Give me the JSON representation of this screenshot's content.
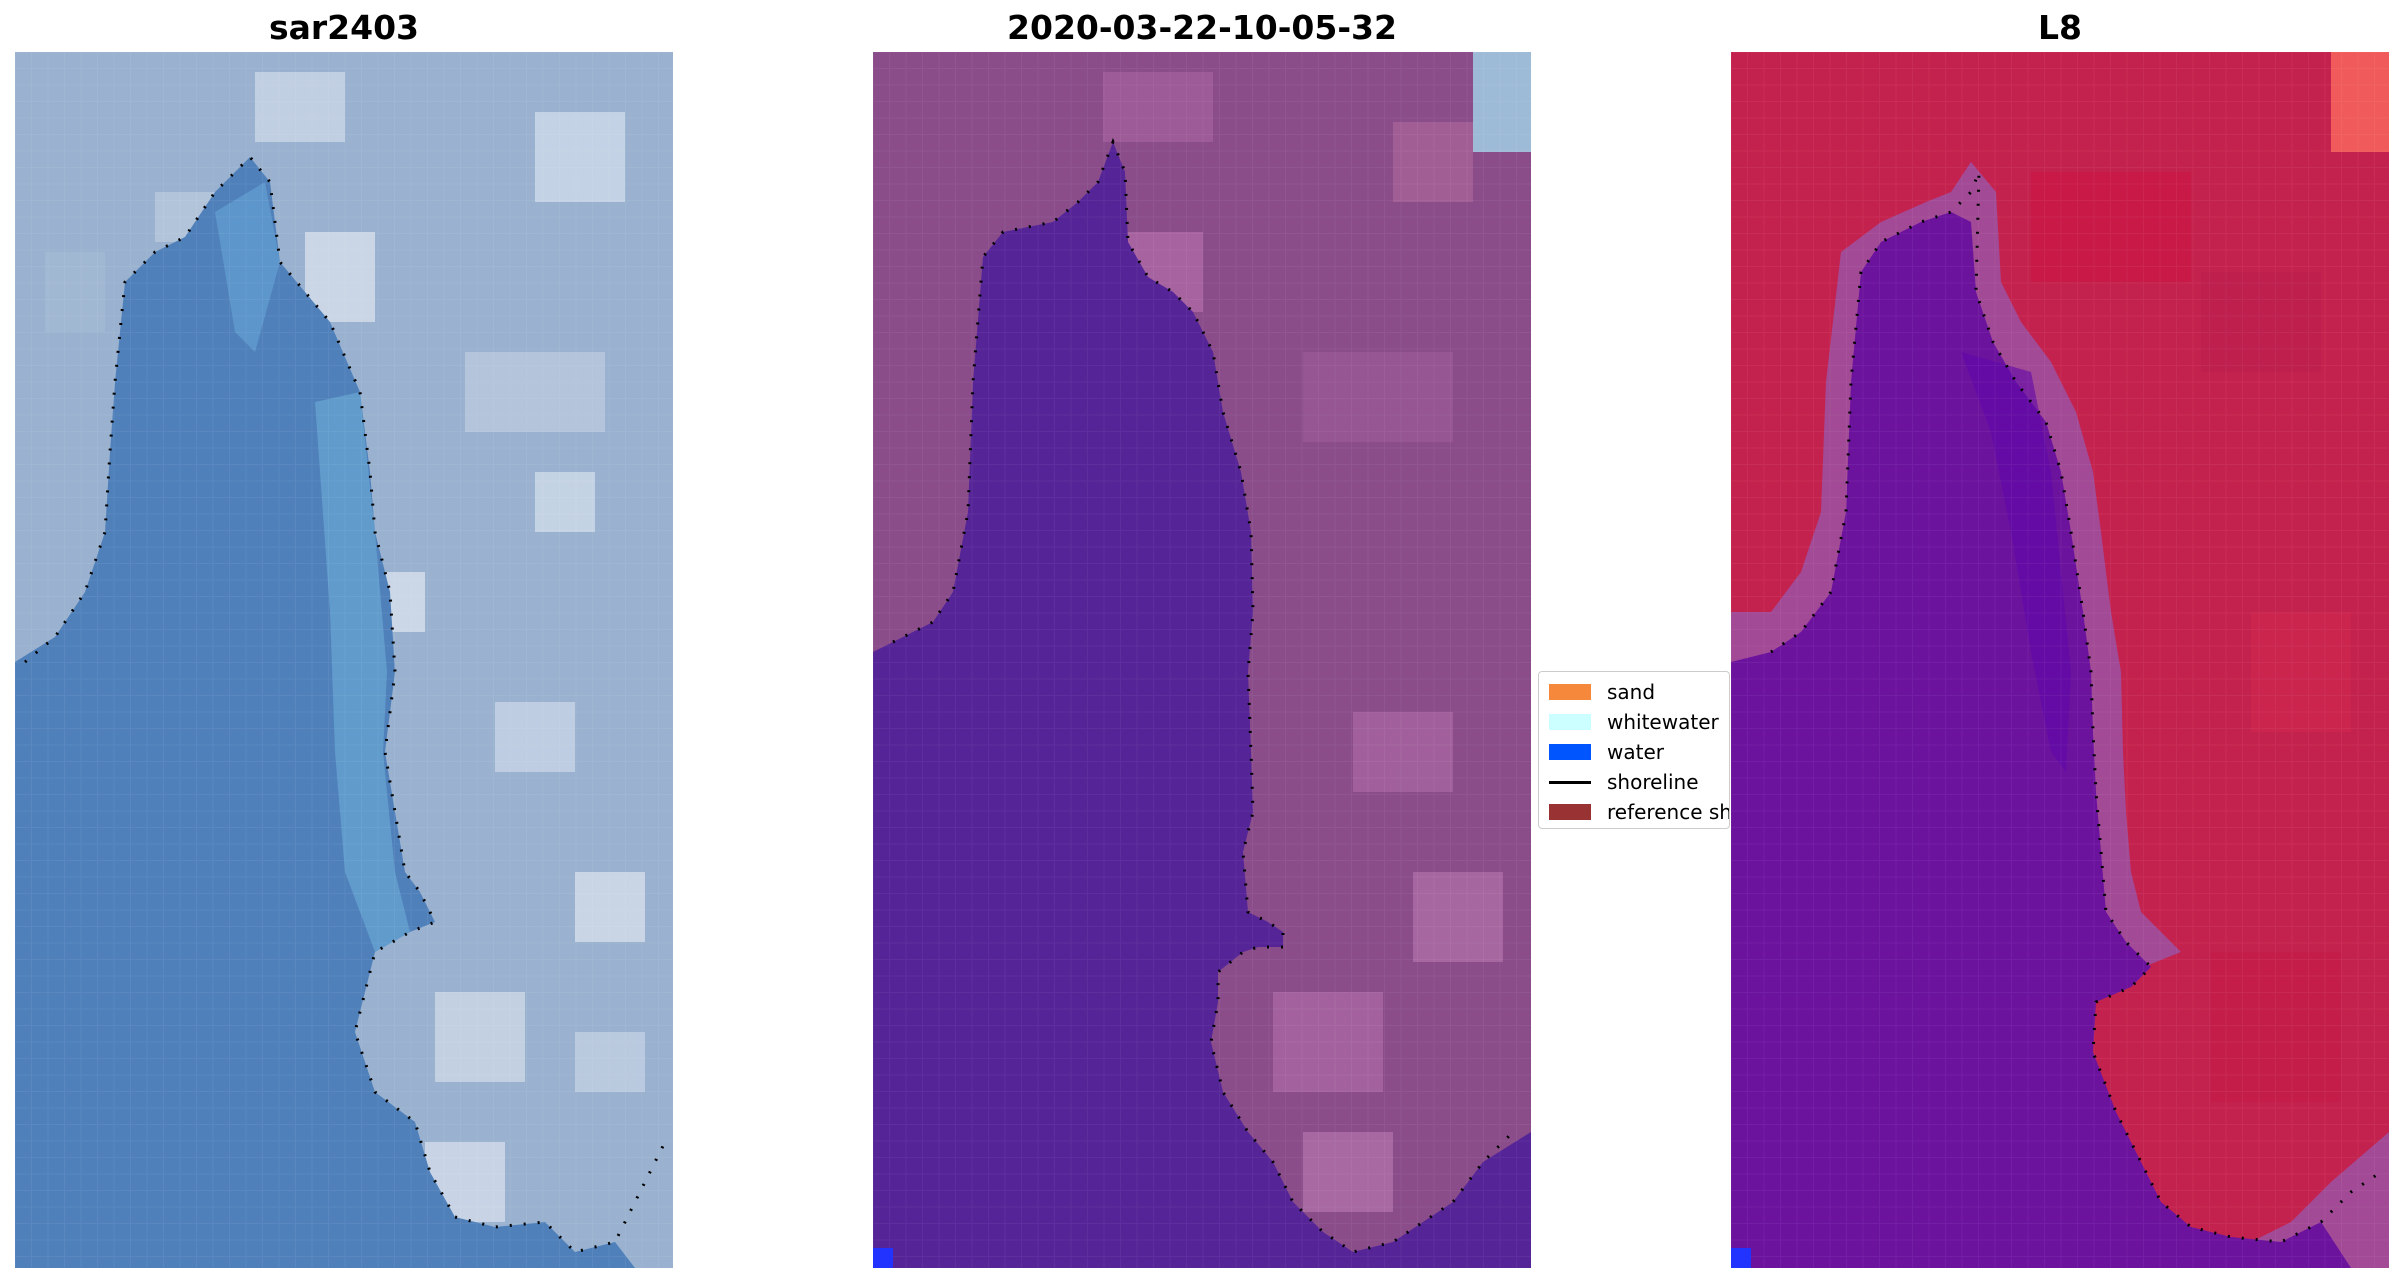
{
  "panels": [
    {
      "title": "sar2403"
    },
    {
      "title": "2020-03-22-10-05-32"
    },
    {
      "title": "L8"
    }
  ],
  "legend": {
    "items": [
      {
        "label": "sand",
        "color": "#F5883A"
      },
      {
        "label": "whitewater",
        "color": "#CCFFFF"
      },
      {
        "label": "water",
        "color": "#0055FF"
      },
      {
        "label": "shoreline",
        "color": "#000000"
      },
      {
        "label": "reference shoreline",
        "color": "#993333"
      }
    ]
  },
  "colors": {
    "panel1_land": "#9AB2CF",
    "panel1_water": "#4F80BA",
    "panel2_land": "#8A4D8A",
    "panel2_water": "#552497",
    "panel2_corner": "#9DBAD6",
    "panel3_land": "#C4224E",
    "panel3_water": "#6C139E",
    "panel3_corner": "#F05A5A",
    "water_pixel": "#2233FF"
  }
}
